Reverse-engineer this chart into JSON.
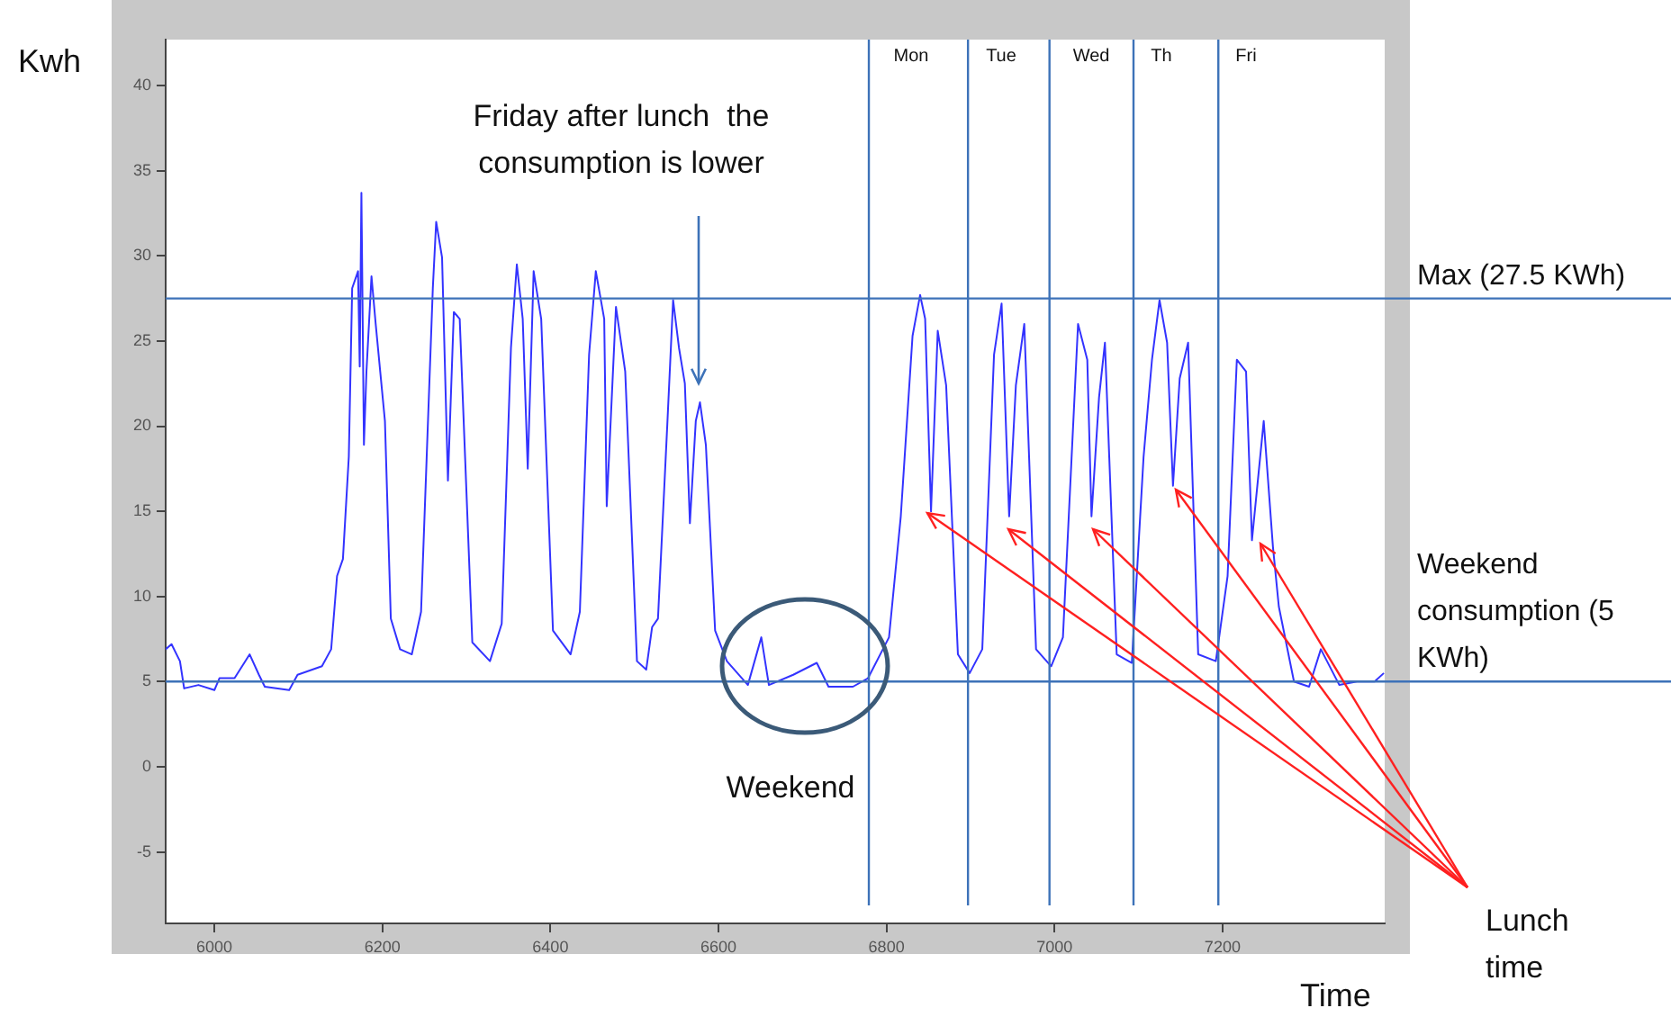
{
  "chart_data": {
    "type": "line",
    "xlabel": "Time",
    "ylabel": "Kwh",
    "xlim": [
      5942,
      7393
    ],
    "ylim": [
      -9.2,
      42.7
    ],
    "xticks": [
      6000,
      6200,
      6400,
      6600,
      6800,
      7000,
      7200
    ],
    "yticks": [
      -5,
      0,
      5,
      10,
      15,
      20,
      25,
      30,
      35,
      40
    ],
    "grid": false,
    "legend": false,
    "marker": "none",
    "line_style": "solid",
    "series": [
      {
        "color": "#3333ff",
        "x": [
          5942,
          5949,
          5959,
          5964,
          5981,
          6000,
          6006,
          6024,
          6042,
          6053,
          6060,
          6089,
          6099,
          6128,
          6139,
          6146,
          6153,
          6160,
          6164,
          6171,
          6173,
          6175,
          6178,
          6181,
          6187,
          6192,
          6203,
          6210,
          6221,
          6235,
          6246,
          6260,
          6264,
          6271,
          6278,
          6285,
          6292,
          6307,
          6328,
          6342,
          6353,
          6360,
          6367,
          6373,
          6380,
          6389,
          6403,
          6424,
          6435,
          6446,
          6454,
          6464,
          6467,
          6478,
          6489,
          6503,
          6514,
          6521,
          6528,
          6539,
          6546,
          6553,
          6560,
          6566,
          6573,
          6578,
          6585,
          6596,
          6610,
          6635,
          6651,
          6660,
          6689,
          6717,
          6731,
          6760,
          6778,
          6803,
          6817,
          6831,
          6840,
          6846,
          6853,
          6861,
          6871,
          6885,
          6899,
          6914,
          6928,
          6937,
          6946,
          6954,
          6964,
          6978,
          6996,
          7010,
          7028,
          7039,
          7044,
          7053,
          7060,
          7074,
          7092,
          7106,
          7116,
          7125,
          7134,
          7141,
          7149,
          7159,
          7171,
          7192,
          7206,
          7217,
          7228,
          7235,
          7249,
          7260,
          7267,
          7285,
          7303,
          7317,
          7339,
          7360,
          7381,
          7392
        ],
        "values": [
          6.9,
          7.2,
          6.2,
          4.6,
          4.8,
          4.5,
          5.2,
          5.2,
          6.6,
          5.4,
          4.7,
          4.5,
          5.4,
          5.9,
          6.9,
          11.2,
          12.2,
          18.2,
          28.1,
          29.1,
          23.5,
          33.7,
          18.9,
          23.2,
          28.8,
          26.0,
          20.3,
          8.7,
          6.9,
          6.6,
          9.1,
          28.1,
          32.0,
          29.9,
          16.8,
          26.7,
          26.3,
          7.3,
          6.2,
          8.4,
          24.6,
          29.5,
          26.3,
          17.5,
          29.1,
          26.3,
          8.0,
          6.6,
          9.1,
          24.2,
          29.1,
          26.3,
          15.3,
          27.0,
          23.2,
          6.2,
          5.7,
          8.2,
          8.7,
          20.0,
          27.4,
          24.6,
          22.5,
          14.3,
          20.3,
          21.4,
          18.9,
          8.0,
          6.2,
          4.8,
          7.6,
          4.8,
          5.4,
          6.1,
          4.7,
          4.7,
          5.2,
          7.6,
          14.7,
          25.3,
          27.7,
          26.3,
          15.0,
          25.6,
          22.4,
          6.6,
          5.5,
          6.9,
          24.2,
          27.2,
          14.7,
          22.4,
          26.0,
          6.9,
          5.9,
          7.6,
          26.0,
          23.9,
          14.7,
          21.7,
          24.9,
          6.6,
          6.1,
          18.2,
          23.9,
          27.4,
          24.9,
          16.5,
          22.8,
          24.9,
          6.6,
          6.2,
          11.2,
          23.9,
          23.2,
          13.3,
          20.3,
          12.9,
          9.4,
          5.0,
          4.7,
          6.9,
          4.8,
          5.0,
          5.0,
          5.5
        ]
      }
    ],
    "ref_lines": [
      {
        "axis": "y",
        "value": 27.5,
        "label": "Max (27.5 KWh)",
        "color": "#3d72b8"
      },
      {
        "axis": "y",
        "value": 5,
        "label": "Weekend consumption (5 KWh)",
        "color": "#3d72b8"
      },
      {
        "axis": "x",
        "value": 6779,
        "label": null,
        "color": "#3d72b8"
      },
      {
        "axis": "x",
        "value": 6897,
        "label": null,
        "color": "#3d72b8"
      },
      {
        "axis": "x",
        "value": 6994,
        "label": null,
        "color": "#3d72b8"
      },
      {
        "axis": "x",
        "value": 7094,
        "label": null,
        "color": "#3d72b8"
      },
      {
        "axis": "x",
        "value": 7195,
        "label": null,
        "color": "#3d72b8"
      }
    ],
    "annotations": [
      "Friday after lunch  the consumption is lower",
      "Weekend",
      "Mon",
      "Tue",
      "Wed",
      "Th",
      "Fri",
      "Lunch time"
    ]
  }
}
